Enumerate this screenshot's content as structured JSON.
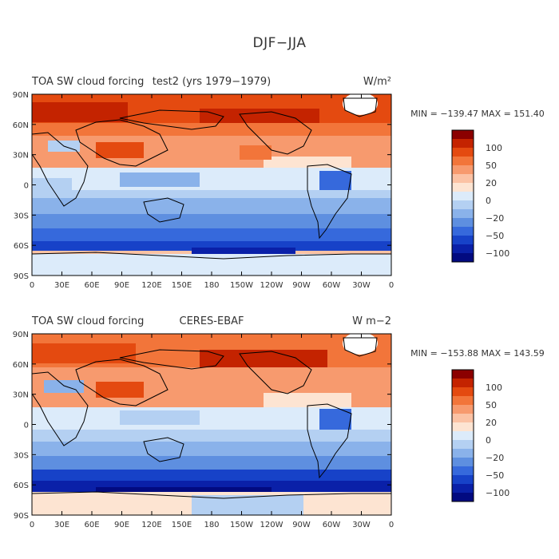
{
  "page": {
    "title": "DJF−JJA"
  },
  "panels": [
    {
      "id": "model",
      "left_title": "TOA SW cloud forcing",
      "center_title": "test2 (yrs 1979−1979)",
      "units": "W/m²",
      "stats": "MIN = −139.47  MAX = 151.40"
    },
    {
      "id": "obs",
      "left_title": "TOA SW cloud forcing",
      "center_title": "CERES-EBAF",
      "units": "W m−2",
      "stats": "MIN = −153.88  MAX = 143.59"
    }
  ],
  "axes": {
    "lat_ticks": [
      "90N",
      "60N",
      "30N",
      "0",
      "30S",
      "60S",
      "90S"
    ],
    "lon_ticks": [
      "0",
      "30E",
      "60E",
      "90E",
      "120E",
      "150E",
      "180",
      "150W",
      "120W",
      "90W",
      "60W",
      "30W",
      "0"
    ]
  },
  "colorbar": {
    "labels": [
      "100",
      "50",
      "20",
      "0",
      "−20",
      "−50",
      "−100"
    ],
    "colors_top_to_bottom": [
      "#8b0000",
      "#c42300",
      "#e44a10",
      "#f2753a",
      "#f79a6e",
      "#fbc2a4",
      "#fde4d2",
      "#dcebfa",
      "#b4d0f2",
      "#8ab2ea",
      "#5e8fe0",
      "#3669dc",
      "#1742c8",
      "#0a20a8",
      "#020a80"
    ]
  },
  "colors": {
    "land_outline": "#000000",
    "frame": "#000000"
  }
}
